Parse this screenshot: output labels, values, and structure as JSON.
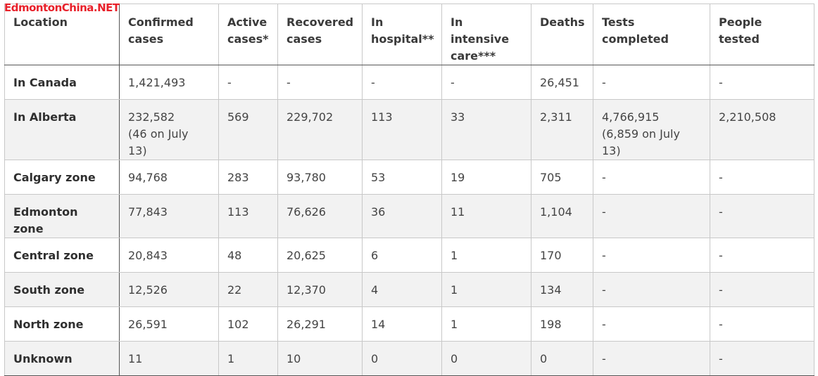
{
  "watermark": "EdmontonChina.NET",
  "table": {
    "headers": [
      "Location",
      "Confirmed cases",
      "Active cases*",
      "Recovered cases",
      "In hospital**",
      "In intensive care***",
      "Deaths",
      "Tests completed",
      "People tested"
    ],
    "rows": [
      {
        "location": "In Canada",
        "confirmed": "1,421,493",
        "confirmed_note": "",
        "active": "-",
        "recovered": "-",
        "hospital": "-",
        "icu": "-",
        "deaths": "26,451",
        "tests": "-",
        "tests_note": "",
        "people": "-"
      },
      {
        "location": "In Alberta",
        "confirmed": "232,582",
        "confirmed_note": "(46 on July 13)",
        "active": "569",
        "recovered": "229,702",
        "hospital": "113",
        "icu": "33",
        "deaths": "2,311",
        "tests": "4,766,915",
        "tests_note": "(6,859 on July 13)",
        "people": "2,210,508"
      },
      {
        "location": "Calgary zone",
        "confirmed": "94,768",
        "confirmed_note": "",
        "active": "283",
        "recovered": "93,780",
        "hospital": "53",
        "icu": "19",
        "deaths": "705",
        "tests": "-",
        "tests_note": "",
        "people": "-"
      },
      {
        "location": "Edmonton zone",
        "confirmed": "77,843",
        "confirmed_note": "",
        "active": "113",
        "recovered": "76,626",
        "hospital": "36",
        "icu": "11",
        "deaths": "1,104",
        "tests": "-",
        "tests_note": "",
        "people": "-"
      },
      {
        "location": "Central zone",
        "confirmed": "20,843",
        "confirmed_note": "",
        "active": "48",
        "recovered": "20,625",
        "hospital": "6",
        "icu": "1",
        "deaths": "170",
        "tests": "-",
        "tests_note": "",
        "people": "-"
      },
      {
        "location": "South zone",
        "confirmed": "12,526",
        "confirmed_note": "",
        "active": "22",
        "recovered": "12,370",
        "hospital": "4",
        "icu": "1",
        "deaths": "134",
        "tests": "-",
        "tests_note": "",
        "people": "-"
      },
      {
        "location": "North zone",
        "confirmed": "26,591",
        "confirmed_note": "",
        "active": "102",
        "recovered": "26,291",
        "hospital": "14",
        "icu": "1",
        "deaths": "198",
        "tests": "-",
        "tests_note": "",
        "people": "-"
      },
      {
        "location": "Unknown",
        "confirmed": "11",
        "confirmed_note": "",
        "active": "1",
        "recovered": "10",
        "hospital": "0",
        "icu": "0",
        "deaths": "0",
        "tests": "-",
        "tests_note": "",
        "people": "-"
      }
    ]
  }
}
